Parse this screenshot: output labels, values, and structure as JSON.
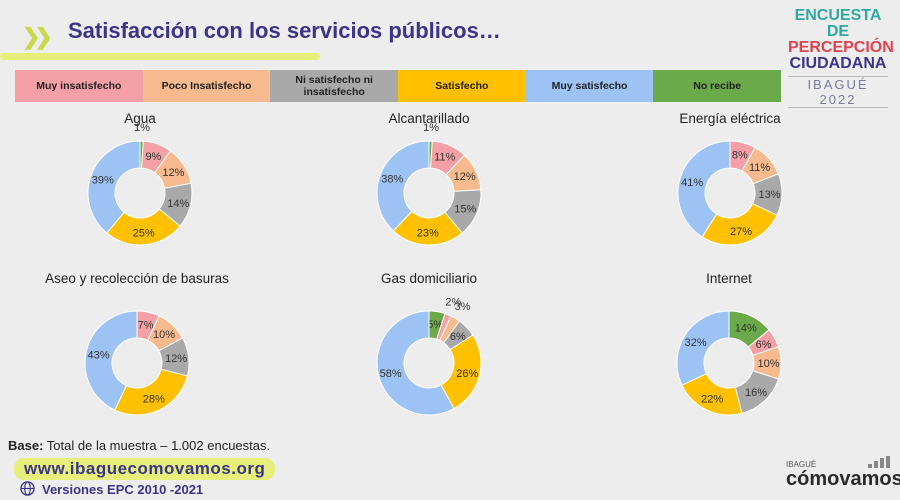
{
  "header": {
    "title": "Satisfacción con los servicios públicos…",
    "brand_lines": [
      "ENCUESTA DE",
      "PERCEPCIÓN",
      "CIUDADANA"
    ],
    "brand_year": "IBAGUÉ 2022",
    "chevron_icon": "double-chevron-right-icon"
  },
  "legend": [
    {
      "label": "Muy insatisfecho",
      "color": "#f4a0a6"
    },
    {
      "label": "Poco Insatisfecho",
      "color": "#f7b98e"
    },
    {
      "label": "Ni satisfecho ni insatisfecho",
      "color": "#a9a9a9"
    },
    {
      "label": "Satisfecho",
      "color": "#ffc000"
    },
    {
      "label": "Muy satisfecho",
      "color": "#9dc3f5"
    },
    {
      "label": "No recibe",
      "color": "#6aaa4a"
    }
  ],
  "chart_data": [
    {
      "type": "pie",
      "title": "Agua",
      "categories": [
        "Muy insatisfecho",
        "Poco Insatisfecho",
        "Ni satisfecho ni insatisfecho",
        "Satisfecho",
        "Muy satisfecho",
        "No recibe"
      ],
      "values": [
        9,
        12,
        14,
        25,
        39,
        1
      ]
    },
    {
      "type": "pie",
      "title": "Alcantarillado",
      "categories": [
        "Muy insatisfecho",
        "Poco Insatisfecho",
        "Ni satisfecho ni insatisfecho",
        "Satisfecho",
        "Muy satisfecho",
        "No recibe"
      ],
      "values": [
        11,
        12,
        15,
        23,
        38,
        1
      ]
    },
    {
      "type": "pie",
      "title": "Energía eléctrica",
      "categories": [
        "Muy insatisfecho",
        "Poco Insatisfecho",
        "Ni satisfecho ni insatisfecho",
        "Satisfecho",
        "Muy satisfecho",
        "No recibe"
      ],
      "values": [
        8,
        11,
        13,
        27,
        41,
        0
      ]
    },
    {
      "type": "pie",
      "title": "Aseo y recolección de basuras",
      "categories": [
        "Muy insatisfecho",
        "Poco Insatisfecho",
        "Ni satisfecho ni insatisfecho",
        "Satisfecho",
        "Muy satisfecho",
        "No recibe"
      ],
      "values": [
        7,
        10,
        12,
        28,
        43,
        0
      ]
    },
    {
      "type": "pie",
      "title": "Gas domiciliario",
      "categories": [
        "Muy insatisfecho",
        "Poco Insatisfecho",
        "Ni satisfecho ni insatisfecho",
        "Satisfecho",
        "Muy satisfecho",
        "No recibe"
      ],
      "values": [
        2,
        3,
        6,
        26,
        58,
        5
      ]
    },
    {
      "type": "pie",
      "title": "Internet",
      "categories": [
        "Muy insatisfecho",
        "Poco Insatisfecho",
        "Ni satisfecho ni insatisfecho",
        "Satisfecho",
        "Muy satisfecho",
        "No recibe"
      ],
      "values": [
        6,
        10,
        16,
        22,
        32,
        14
      ]
    }
  ],
  "footer": {
    "base_label": "Base:",
    "base_text": " Total de la muestra – 1.002 encuestas.",
    "url": "www.ibaguecomovamos.org",
    "versions": "Versiones EPC 2010 -2021",
    "globe_icon": "globe-icon",
    "logo_city": "IBAGUÉ",
    "logo_word": "cómovamos",
    "logo_icon": "signal-bars-icon"
  }
}
